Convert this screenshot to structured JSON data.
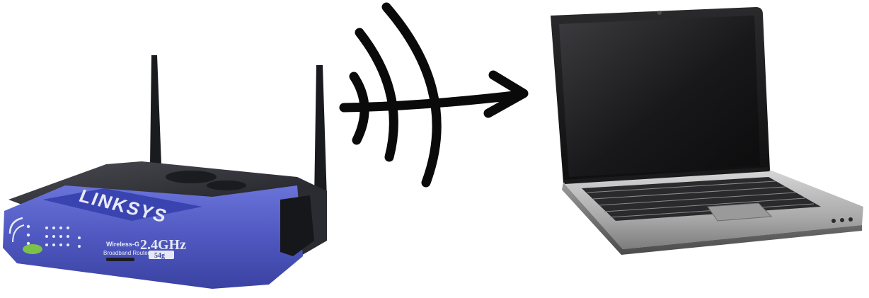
{
  "router": {
    "brand": "LINKSYS",
    "product_line": "Wireless-G",
    "product_type": "Broadband Router",
    "band": "2.4GHz",
    "standard": "54g",
    "icon": "wireless-router-icon"
  },
  "signal": {
    "icon": "wireless-signal-arrow-icon"
  },
  "laptop": {
    "icon": "laptop-icon"
  },
  "colors": {
    "router_blue": "#5660c8",
    "router_dark": "#2a2b2f",
    "ink": "#0a0a0a",
    "laptop_silver": "#b8b8b8",
    "screen": "#1c1c1e"
  }
}
